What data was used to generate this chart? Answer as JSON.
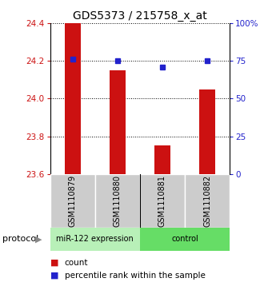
{
  "title": "GDS5373 / 215758_x_at",
  "samples": [
    "GSM1110879",
    "GSM1110880",
    "GSM1110881",
    "GSM1110882"
  ],
  "bar_values": [
    24.4,
    24.15,
    23.75,
    24.05
  ],
  "dot_values": [
    76,
    75,
    71,
    75
  ],
  "ylim_left": [
    23.6,
    24.4
  ],
  "ylim_right": [
    0,
    100
  ],
  "yticks_left": [
    23.6,
    23.8,
    24.0,
    24.2,
    24.4
  ],
  "yticks_right": [
    0,
    25,
    50,
    75,
    100
  ],
  "ytick_labels_right": [
    "0",
    "25",
    "50",
    "75",
    "100%"
  ],
  "bar_color": "#cc1111",
  "dot_color": "#2222cc",
  "groups": [
    {
      "label": "miR-122 expression",
      "color": "#b8f0b8"
    },
    {
      "label": "control",
      "color": "#66dd66"
    }
  ],
  "protocol_label": "protocol",
  "legend_count_label": "count",
  "legend_pct_label": "percentile rank within the sample",
  "title_fontsize": 10,
  "tick_fontsize": 7.5,
  "label_fontsize": 7,
  "bar_width": 0.35,
  "background_color": "#ffffff"
}
